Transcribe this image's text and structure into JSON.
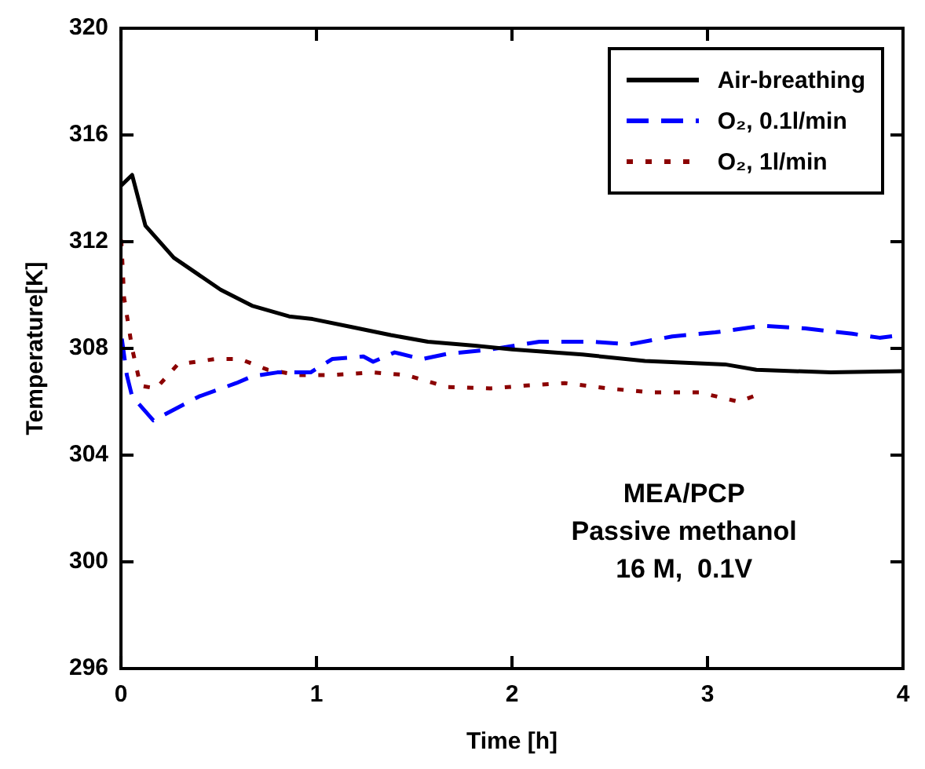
{
  "chart_data": {
    "type": "line",
    "xlabel": "Time [h]",
    "ylabel": "Temperature[K]",
    "xlim": [
      0,
      4
    ],
    "xticks": [
      0,
      1,
      2,
      3,
      4
    ],
    "ylim": [
      296,
      320
    ],
    "yticks": [
      296,
      300,
      304,
      308,
      312,
      316,
      320
    ],
    "grid": false,
    "legend": "top right",
    "marker": "none",
    "series": [
      {
        "name": "Air-breathing",
        "color": "#000000",
        "line_style": "solid",
        "x": [
          0,
          0.057,
          0.125,
          0.27,
          0.51,
          0.67,
          0.86,
          0.98,
          1.18,
          1.38,
          1.57,
          1.81,
          2.0,
          2.36,
          2.68,
          3.09,
          3.25,
          3.63,
          4.0
        ],
        "values": [
          314.1,
          314.5,
          312.6,
          311.4,
          310.2,
          309.6,
          309.2,
          309.1,
          308.8,
          308.5,
          308.25,
          308.1,
          307.96,
          307.77,
          307.53,
          307.4,
          307.2,
          307.1,
          307.15
        ]
      },
      {
        "name": "O₂, 0.1l/min",
        "color": "#0000ff",
        "line_style": "dashed",
        "x": [
          0,
          0.03,
          0.057,
          0.166,
          0.4,
          0.59,
          0.67,
          0.8,
          0.97,
          1.08,
          1.24,
          1.29,
          1.4,
          1.54,
          1.67,
          1.89,
          2.14,
          2.41,
          2.6,
          2.82,
          3.04,
          3.28,
          3.5,
          3.74,
          3.88,
          4.0
        ],
        "values": [
          308.6,
          307.0,
          306.2,
          305.3,
          306.2,
          306.7,
          306.95,
          307.1,
          307.1,
          307.6,
          307.7,
          307.5,
          307.85,
          307.6,
          307.8,
          307.96,
          308.25,
          308.25,
          308.15,
          308.45,
          308.6,
          308.85,
          308.75,
          308.55,
          308.4,
          308.5
        ]
      },
      {
        "name": "O₂, 1l/min",
        "color": "#8b0000",
        "line_style": "dotted",
        "x": [
          0,
          0.016,
          0.057,
          0.1,
          0.18,
          0.29,
          0.48,
          0.61,
          0.75,
          0.91,
          1.08,
          1.29,
          1.46,
          1.67,
          1.89,
          2.06,
          2.27,
          2.49,
          2.71,
          2.96,
          3.16,
          3.25
        ],
        "values": [
          312.3,
          309.9,
          308.0,
          306.6,
          306.5,
          307.4,
          307.6,
          307.6,
          307.2,
          307.0,
          307.0,
          307.1,
          307.0,
          306.55,
          306.5,
          306.6,
          306.7,
          306.5,
          306.35,
          306.35,
          306.0,
          306.25
        ]
      }
    ],
    "annotations": [
      "MEA/PCP",
      "Passive methanol",
      "16 M,  0.1V"
    ]
  }
}
